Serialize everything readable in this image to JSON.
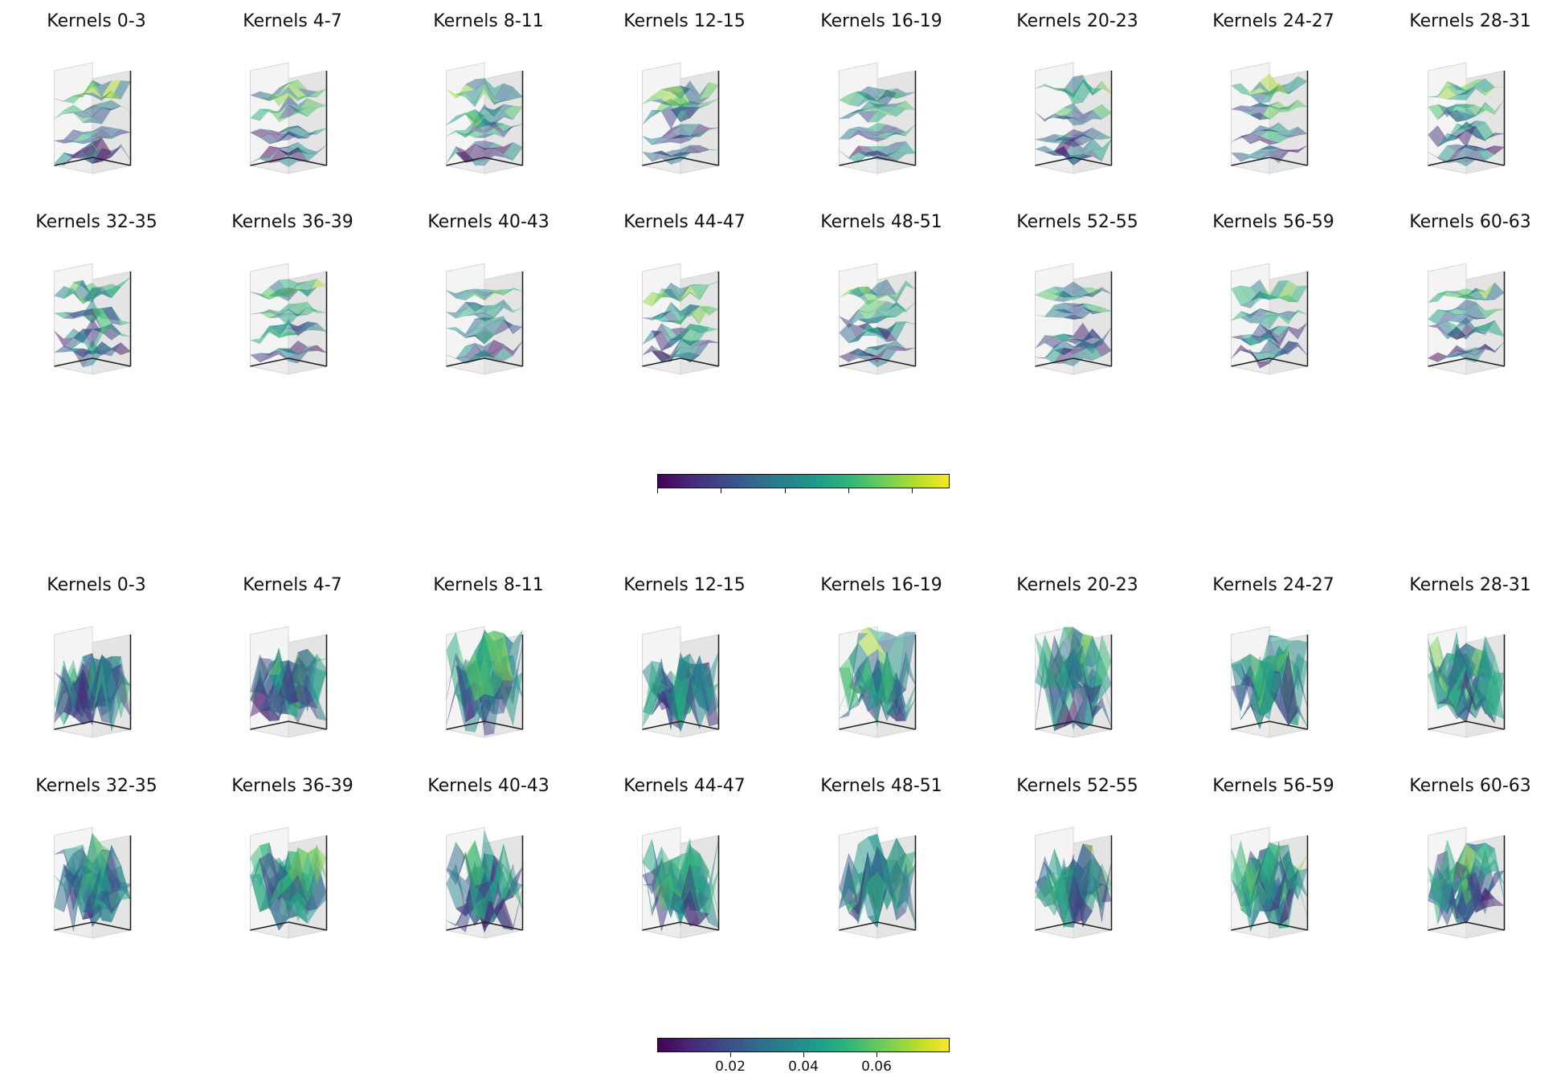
{
  "figure": {
    "colormap": "viridis",
    "colormap_stops": [
      "#440154",
      "#482878",
      "#3e4989",
      "#31688e",
      "#26828e",
      "#1f9e89",
      "#35b779",
      "#6ece58",
      "#b5de2b",
      "#fde725"
    ]
  },
  "chart_data": [
    {
      "type": "surface3d",
      "title": "",
      "panel_titles": [
        "Kernels 0-3",
        "Kernels 4-7",
        "Kernels 8-11",
        "Kernels 12-15",
        "Kernels 16-19",
        "Kernels 20-23",
        "Kernels 24-27",
        "Kernels 28-31",
        "Kernels 32-35",
        "Kernels 36-39",
        "Kernels 40-43",
        "Kernels 44-47",
        "Kernels 48-51",
        "Kernels 52-55",
        "Kernels 56-59",
        "Kernels 60-63"
      ],
      "panel_grid": {
        "rows": 2,
        "cols": 8
      },
      "surfaces_per_panel": 4,
      "surface_style": "layered",
      "colorbar": {
        "orientation": "horizontal",
        "tick_labels": []
      }
    },
    {
      "type": "surface3d",
      "title": "",
      "panel_titles": [
        "Kernels 0-3",
        "Kernels 4-7",
        "Kernels 8-11",
        "Kernels 12-15",
        "Kernels 16-19",
        "Kernels 20-23",
        "Kernels 24-27",
        "Kernels 28-31",
        "Kernels 32-35",
        "Kernels 36-39",
        "Kernels 40-43",
        "Kernels 44-47",
        "Kernels 48-51",
        "Kernels 52-55",
        "Kernels 56-59",
        "Kernels 60-63"
      ],
      "panel_grid": {
        "rows": 2,
        "cols": 8
      },
      "surfaces_per_panel": 4,
      "surface_style": "jagged",
      "colorbar": {
        "orientation": "horizontal",
        "range": [
          0.0,
          0.08
        ],
        "ticks": [
          0.02,
          0.04,
          0.06
        ],
        "tick_labels": [
          "0.02",
          "0.04",
          "0.06"
        ]
      }
    }
  ]
}
